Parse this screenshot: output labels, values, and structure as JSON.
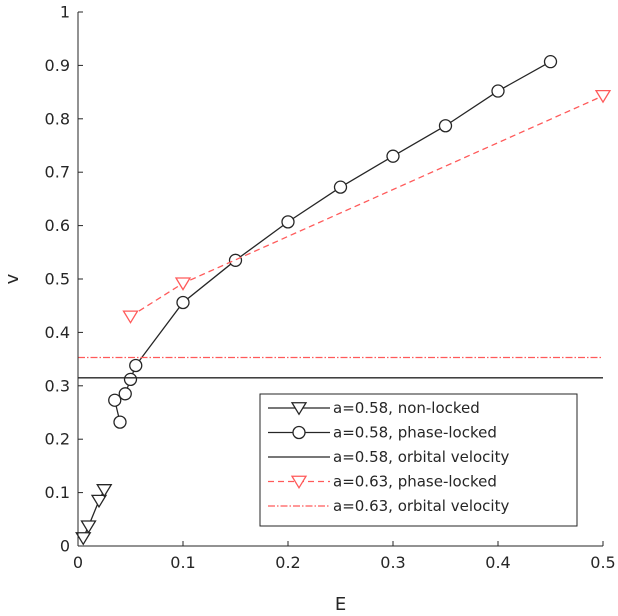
{
  "chart_data": {
    "type": "line",
    "title": "",
    "xlabel": "E",
    "ylabel": "v",
    "xlim": [
      0,
      0.5
    ],
    "ylim": [
      0,
      1
    ],
    "xticks": [
      "0",
      "0.1",
      "0.2",
      "0.3",
      "0.4",
      "0.5"
    ],
    "yticks": [
      "0",
      "0.1",
      "0.2",
      "0.3",
      "0.4",
      "0.5",
      "0.6",
      "0.7",
      "0.8",
      "0.9",
      "1"
    ],
    "grid": false,
    "legend_position": "bottom-right",
    "series": [
      {
        "name": "a=0.58, non-locked",
        "color": "#262626",
        "line_style": "solid",
        "marker": "triangle-down",
        "x": [
          0.005,
          0.01,
          0.02,
          0.025
        ],
        "y": [
          0.015,
          0.037,
          0.085,
          0.105
        ]
      },
      {
        "name": "a=0.58, phase-locked",
        "color": "#262626",
        "line_style": "solid",
        "marker": "circle",
        "x": [
          0.04,
          0.035,
          0.045,
          0.05,
          0.055,
          0.1,
          0.15,
          0.2,
          0.25,
          0.3,
          0.35,
          0.4,
          0.45
        ],
        "y": [
          0.232,
          0.273,
          0.285,
          0.312,
          0.338,
          0.456,
          0.535,
          0.607,
          0.672,
          0.73,
          0.787,
          0.852,
          0.907
        ]
      },
      {
        "name": "a=0.58, orbital velocity",
        "color": "#262626",
        "line_style": "solid",
        "marker": "none",
        "y_const": 0.315
      },
      {
        "name": "a=0.63, phase-locked",
        "color": "#ff5a5a",
        "line_style": "dashed",
        "marker": "triangle-down",
        "x": [
          0.05,
          0.1,
          0.5
        ],
        "y": [
          0.43,
          0.492,
          0.843
        ]
      },
      {
        "name": "a=0.63, orbital velocity",
        "color": "#ff5a5a",
        "line_style": "dash-dot",
        "marker": "none",
        "y_const": 0.353
      }
    ]
  }
}
